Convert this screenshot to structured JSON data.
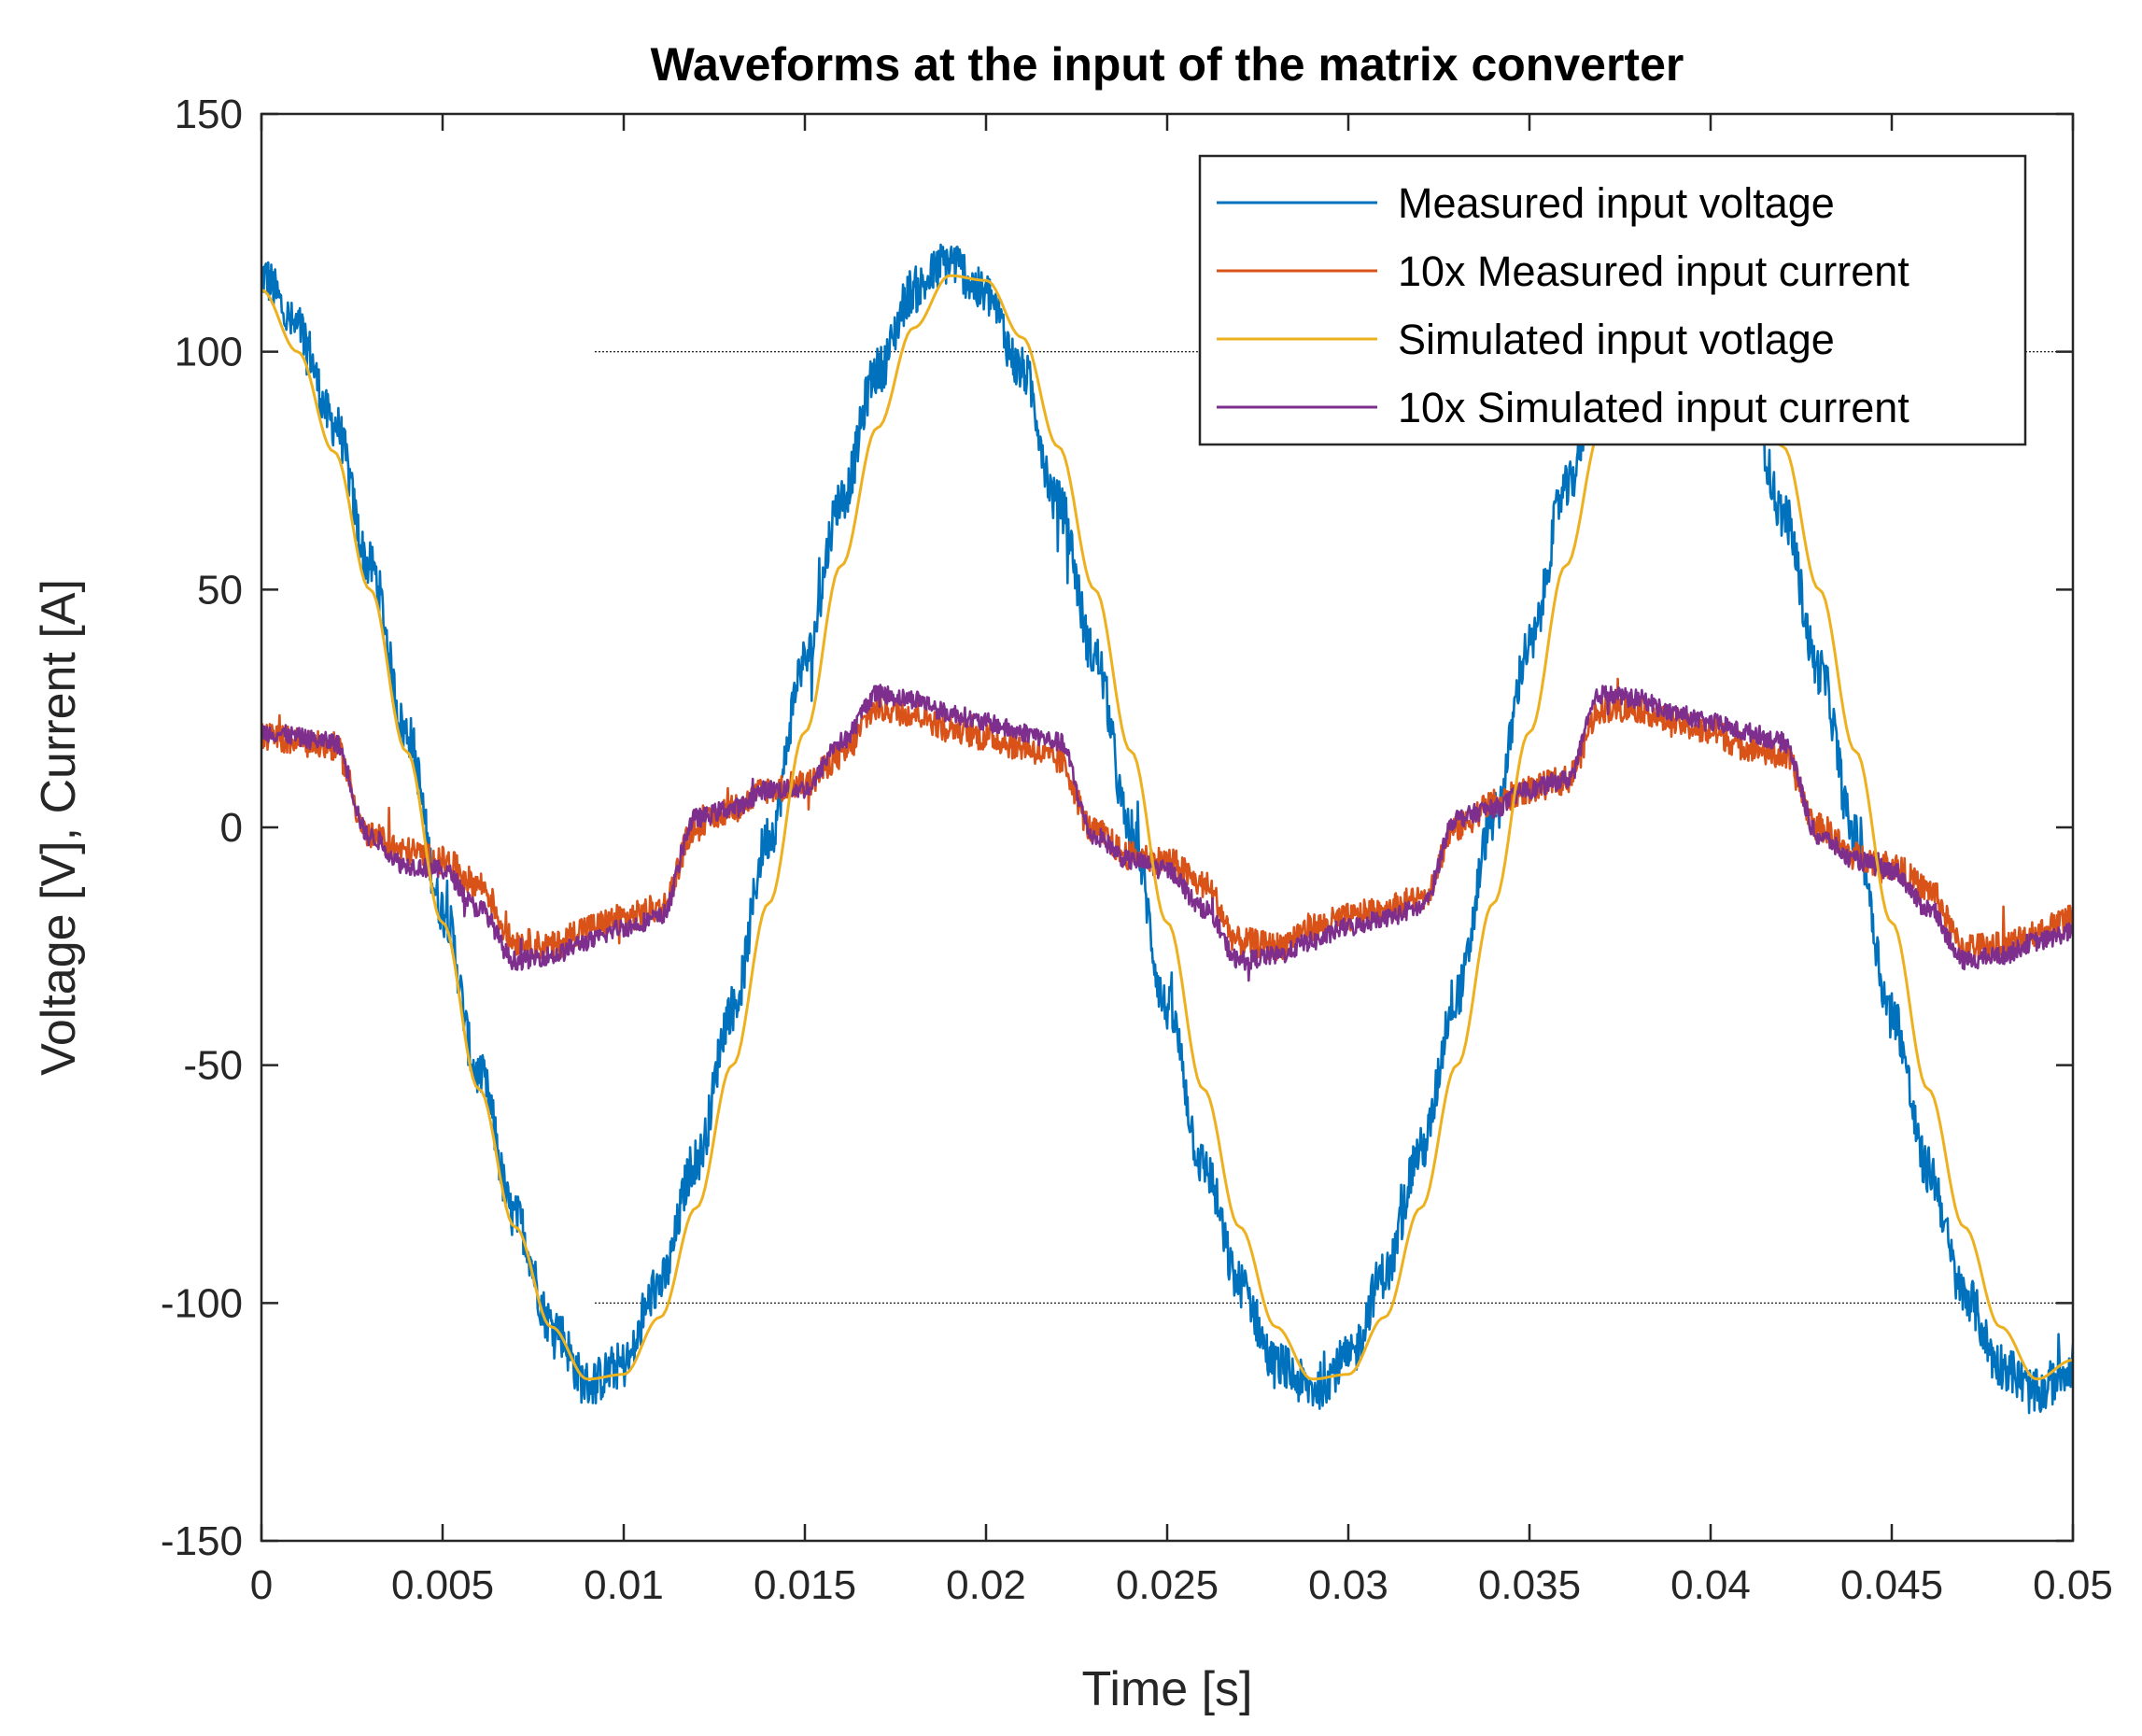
{
  "chart_data": {
    "type": "line",
    "title": "Waveforms at the input of the matrix converter",
    "xlabel": "Time [s]",
    "ylabel": "Voltage [V], Current [A]",
    "xlim": [
      0,
      0.05
    ],
    "ylim": [
      -150,
      150
    ],
    "xticks": [
      0,
      0.005,
      0.01,
      0.015,
      0.02,
      0.025,
      0.03,
      0.035,
      0.04,
      0.045,
      0.05
    ],
    "xtick_labels": [
      "0",
      "0.005",
      "0.01",
      "0.015",
      "0.02",
      "0.025",
      "0.03",
      "0.035",
      "0.04",
      "0.045",
      "0.05"
    ],
    "yticks": [
      -150,
      -100,
      -50,
      0,
      50,
      100,
      150
    ],
    "ytick_labels": [
      "-150",
      "-100",
      "-50",
      "0",
      "50",
      "100",
      "150"
    ],
    "grid": false,
    "legend_position": "top-right",
    "reference_lines": [
      {
        "y": 100,
        "x_start": 0.0092,
        "x_end": 0.05,
        "color": "#000000"
      },
      {
        "y": -100,
        "x_start": 0.0092,
        "x_end": 0.05,
        "color": "#000000"
      }
    ],
    "series": [
      {
        "name": "Measured input voltage",
        "color": "#0072BD",
        "x": [
          0,
          0.001,
          0.002,
          0.003,
          0.004,
          0.005,
          0.006,
          0.007,
          0.008,
          0.009,
          0.01,
          0.011,
          0.012,
          0.013,
          0.014,
          0.015,
          0.016,
          0.017,
          0.018,
          0.019,
          0.02,
          0.021,
          0.022,
          0.023,
          0.024,
          0.025,
          0.026,
          0.027,
          0.028,
          0.029,
          0.03,
          0.031,
          0.032,
          0.033,
          0.034,
          0.035,
          0.036,
          0.037,
          0.038,
          0.039,
          0.04,
          0.041,
          0.042,
          0.043,
          0.044,
          0.045,
          0.046,
          0.047,
          0.048,
          0.049,
          0.05
        ],
        "values": [
          116,
          105,
          85,
          55,
          20,
          -17,
          -52,
          -82,
          -104,
          -117,
          -113,
          -96,
          -70,
          -38,
          -2,
          35,
          69,
          96,
          113,
          119,
          112,
          96,
          68,
          36,
          -1,
          -38,
          -71,
          -96,
          -113,
          -118,
          -112,
          -94,
          -68,
          -35,
          2,
          38,
          71,
          97,
          114,
          119,
          111,
          94,
          66,
          33,
          -2,
          -39,
          -72,
          -98,
          -113,
          -119,
          -113
        ],
        "noise_amplitude": 5
      },
      {
        "name": "10x Measured input current",
        "color": "#D95319",
        "x": [
          0,
          0.002,
          0.003,
          0.004,
          0.005,
          0.006,
          0.007,
          0.008,
          0.009,
          0.01,
          0.011,
          0.012,
          0.013,
          0.014,
          0.015,
          0.016,
          0.017,
          0.018,
          0.019,
          0.02,
          0.021,
          0.022,
          0.023,
          0.024,
          0.025,
          0.026,
          0.027,
          0.028,
          0.029,
          0.03,
          0.031,
          0.032,
          0.033,
          0.034,
          0.035,
          0.036,
          0.037,
          0.038,
          0.039,
          0.04,
          0.041,
          0.042,
          0.043,
          0.044,
          0.045,
          0.046,
          0.047,
          0.048,
          0.049,
          0.05
        ],
        "values": [
          19,
          17,
          -2,
          -5,
          -7,
          -12,
          -24,
          -25,
          -21,
          -19,
          -17,
          0,
          4,
          8,
          9,
          15,
          25,
          24,
          21,
          19,
          17,
          14,
          -1,
          -6,
          -7,
          -12,
          -24,
          -25,
          -21,
          -19,
          -17,
          -15,
          0,
          5,
          8,
          10,
          25,
          25,
          22,
          20,
          17,
          15,
          0,
          -6,
          -8,
          -13,
          -25,
          -25,
          -22,
          -19
        ],
        "noise_amplitude": 3
      },
      {
        "name": "Simulated input votlage",
        "color": "#EDB120",
        "x": [
          0,
          0.001,
          0.002,
          0.003,
          0.004,
          0.005,
          0.006,
          0.007,
          0.008,
          0.009,
          0.01,
          0.011,
          0.012,
          0.013,
          0.014,
          0.015,
          0.016,
          0.017,
          0.018,
          0.019,
          0.02,
          0.021,
          0.022,
          0.023,
          0.024,
          0.025,
          0.026,
          0.027,
          0.028,
          0.029,
          0.03,
          0.031,
          0.032,
          0.033,
          0.034,
          0.035,
          0.036,
          0.037,
          0.038,
          0.039,
          0.04,
          0.041,
          0.042,
          0.043,
          0.044,
          0.045,
          0.046,
          0.047,
          0.048,
          0.049,
          0.05
        ],
        "values": [
          113,
          100,
          79,
          50,
          16,
          -20,
          -55,
          -84,
          -105,
          -116,
          -115,
          -103,
          -80,
          -50,
          -16,
          20,
          55,
          84,
          105,
          116,
          115,
          103,
          80,
          50,
          16,
          -20,
          -55,
          -84,
          -105,
          -116,
          -115,
          -103,
          -80,
          -50,
          -16,
          20,
          55,
          84,
          105,
          116,
          115,
          103,
          80,
          50,
          16,
          -20,
          -55,
          -84,
          -105,
          -116,
          -112
        ],
        "noise_amplitude": 0
      },
      {
        "name": "10x Simulated input current",
        "color": "#7E2F8E",
        "x": [
          0,
          0.002,
          0.003,
          0.004,
          0.005,
          0.006,
          0.007,
          0.008,
          0.009,
          0.01,
          0.011,
          0.012,
          0.013,
          0.014,
          0.015,
          0.016,
          0.017,
          0.018,
          0.019,
          0.02,
          0.021,
          0.022,
          0.023,
          0.024,
          0.025,
          0.026,
          0.027,
          0.028,
          0.029,
          0.03,
          0.031,
          0.032,
          0.033,
          0.034,
          0.035,
          0.036,
          0.037,
          0.038,
          0.039,
          0.04,
          0.041,
          0.042,
          0.043,
          0.044,
          0.045,
          0.046,
          0.047,
          0.048,
          0.049,
          0.05
        ],
        "values": [
          20,
          18,
          -2,
          -8,
          -9,
          -17,
          -28,
          -27,
          -24,
          -21,
          -19,
          2,
          4,
          8,
          8,
          18,
          28,
          27,
          24,
          22,
          20,
          18,
          -2,
          -7,
          -9,
          -17,
          -28,
          -27,
          -24,
          -21,
          -19,
          -17,
          2,
          4,
          8,
          10,
          28,
          27,
          24,
          22,
          20,
          18,
          -2,
          -7,
          -9,
          -17,
          -28,
          -27,
          -24,
          -22
        ],
        "noise_amplitude": 2
      }
    ]
  }
}
